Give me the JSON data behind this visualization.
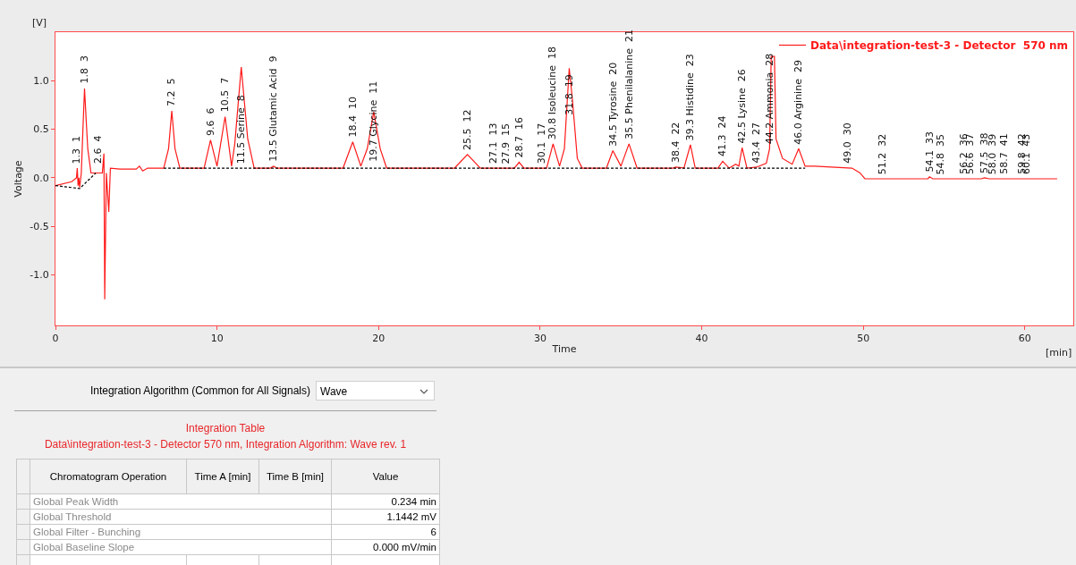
{
  "chart_data": [
    {
      "type": "line",
      "xlabel": "Time",
      "ylabel": "Voltage",
      "xlim": [
        0,
        63
      ],
      "xticks": [
        0,
        10,
        20,
        30,
        40,
        50,
        60
      ],
      "ylim": [
        -1.52,
        1.5
      ],
      "yticks": [
        {
          "value": -1,
          "label": "-1.0"
        },
        {
          "value": -0.5,
          "label": "-0.5"
        },
        {
          "value": 0,
          "label": "0.0"
        },
        {
          "value": 0.5,
          "label": "0.5"
        },
        {
          "value": 1,
          "label": "1.0"
        }
      ],
      "grid": false,
      "marker": "none",
      "legend": "top right",
      "series": [
        {
          "name": "Data\\integration-test-3 - Detector  570 nm",
          "color": "#ff1a1a",
          "line_style": "solid",
          "x": [
            0,
            1.0,
            1.3,
            1.35,
            1.4,
            1.45,
            1.5,
            1.6,
            1.7,
            1.8,
            1.9,
            2.0,
            2.2,
            2.5,
            2.9,
            3.0,
            3.05,
            3.1,
            3.15,
            3.3,
            3.4,
            4.0,
            5.0,
            5.2,
            5.4,
            5.7,
            6.7,
            7.0,
            7.2,
            7.4,
            7.7,
            9.2,
            9.6,
            10.0,
            10.5,
            10.9,
            11.1,
            11.5,
            11.9,
            12.3,
            13.3,
            13.5,
            13.7,
            17.8,
            18.4,
            18.9,
            19.3,
            19.7,
            20.1,
            20.5,
            24.7,
            25.5,
            26.3,
            28.4,
            28.7,
            29.0,
            30.4,
            30.8,
            31.2,
            31.5,
            31.8,
            32.0,
            32.3,
            32.6,
            34.1,
            34.5,
            35.0,
            35.5,
            36.0,
            38.2,
            38.4,
            38.9,
            39.3,
            39.6,
            41.0,
            41.3,
            41.7,
            42.1,
            42.3,
            42.5,
            42.8,
            43.4,
            44.0,
            44.2,
            44.3,
            44.5,
            44.6,
            45.0,
            45.6,
            46.0,
            46.4,
            47.0,
            49.3,
            49.8,
            50.1,
            54.0,
            54.1,
            54.3,
            57.3,
            57.5,
            57.8,
            62
          ],
          "values": [
            -0.08,
            -0.04,
            0.0,
            0.1,
            -0.08,
            0.0,
            -0.1,
            0.05,
            0.5,
            0.92,
            0.6,
            0.3,
            0.05,
            0.05,
            0.05,
            0.25,
            -1.25,
            -0.6,
            0.05,
            -0.35,
            0.1,
            0.09,
            0.09,
            0.12,
            0.07,
            0.1,
            0.1,
            0.3,
            0.69,
            0.3,
            0.1,
            0.1,
            0.39,
            0.12,
            0.63,
            0.12,
            0.35,
            1.14,
            0.4,
            0.1,
            0.1,
            0.12,
            0.1,
            0.1,
            0.37,
            0.12,
            0.3,
            0.68,
            0.3,
            0.1,
            0.1,
            0.24,
            0.1,
            0.1,
            0.16,
            0.1,
            0.1,
            0.35,
            0.12,
            0.3,
            1.13,
            0.8,
            0.2,
            0.1,
            0.1,
            0.28,
            0.12,
            0.35,
            0.1,
            0.1,
            0.11,
            0.1,
            0.34,
            0.1,
            0.1,
            0.17,
            0.1,
            0.14,
            0.12,
            0.31,
            0.1,
            0.11,
            0.15,
            0.3,
            1.25,
            1.25,
            0.4,
            0.2,
            0.14,
            0.3,
            0.12,
            0.12,
            0.1,
            0.05,
            -0.01,
            -0.01,
            0.01,
            -0.01,
            -0.01,
            0.0,
            -0.01,
            -0.01
          ]
        },
        {
          "color": "#000000",
          "line_style": "dashed",
          "x": [
            0,
            1.5,
            2.5,
            2.6,
            6.7,
            46.4
          ],
          "values": [
            -0.08,
            -0.11,
            0.05,
            null,
            0.1,
            0.1
          ]
        }
      ],
      "annotations": [
        "[V]",
        "[min]",
        {
          "text": "1.3  1",
          "x": 1.3,
          "y": 0.1
        },
        {
          "text": "1.8  3",
          "x": 1.8,
          "y": 0.92
        },
        {
          "text": "2.6  4",
          "x": 2.6,
          "y": 0.1
        },
        {
          "text": "7.2  5",
          "x": 7.2,
          "y": 0.69
        },
        {
          "text": "9.6  6",
          "x": 9.6,
          "y": 0.39
        },
        {
          "text": "10.5  7",
          "x": 10.5,
          "y": 0.63
        },
        {
          "text": "11.5 Serine  8",
          "x": 11.5,
          "y": 0.1
        },
        {
          "text": "13.5 Glutamic Acid  9",
          "x": 13.5,
          "y": 0.12
        },
        {
          "text": "18.4  10",
          "x": 18.4,
          "y": 0.37
        },
        {
          "text": "19.7 Glycine  11",
          "x": 19.7,
          "y": 0.12
        },
        {
          "text": "25.5  12",
          "x": 25.5,
          "y": 0.24
        },
        {
          "text": "27.1  13",
          "x": 27.1,
          "y": 0.1
        },
        {
          "text": "27.9  15",
          "x": 27.9,
          "y": 0.1
        },
        {
          "text": "28.7  16",
          "x": 28.7,
          "y": 0.16
        },
        {
          "text": "30.1  17",
          "x": 30.1,
          "y": 0.1
        },
        {
          "text": "30.8 Isoleucine  18",
          "x": 30.8,
          "y": 0.35
        },
        {
          "text": "31.8  19",
          "x": 31.8,
          "y": 0.6
        },
        {
          "text": "34.5 Tyrosine  20",
          "x": 34.5,
          "y": 0.28
        },
        {
          "text": "35.5 Phenilalanine  21",
          "x": 35.5,
          "y": 0.35
        },
        {
          "text": "38.4  22",
          "x": 38.4,
          "y": 0.11
        },
        {
          "text": "39.3 Histidine  23",
          "x": 39.3,
          "y": 0.34
        },
        {
          "text": "41.3  24",
          "x": 41.3,
          "y": 0.17
        },
        {
          "text": "42.5 Lysine  26",
          "x": 42.5,
          "y": 0.31
        },
        {
          "text": "43.4  27",
          "x": 43.4,
          "y": 0.11
        },
        {
          "text": "44.2 Ammonia  28",
          "x": 44.2,
          "y": 0.3
        },
        {
          "text": "46.0 Arginine  29",
          "x": 46.0,
          "y": 0.3
        },
        {
          "text": "49.0  30",
          "x": 49.0,
          "y": 0.1
        },
        {
          "text": "51.2  32",
          "x": 51.2,
          "y": -0.01
        },
        {
          "text": "54.1  33",
          "x": 54.1,
          "y": 0.01
        },
        {
          "text": "54.8  35",
          "x": 54.8,
          "y": -0.01
        },
        {
          "text": "56.2  36",
          "x": 56.2,
          "y": -0.01
        },
        {
          "text": "56.6  37",
          "x": 56.6,
          "y": -0.01
        },
        {
          "text": "57.5  38",
          "x": 57.5,
          "y": 0.0
        },
        {
          "text": "58.0  39",
          "x": 58.0,
          "y": -0.01
        },
        {
          "text": "58.7  41",
          "x": 58.7,
          "y": -0.01
        },
        {
          "text": "59.8  42",
          "x": 59.8,
          "y": -0.01
        },
        {
          "text": "60.1  43",
          "x": 60.1,
          "y": -0.01
        }
      ]
    },
    {
      "type": "other",
      "title": "Integration Table",
      "subtitle": "Data\\integration-test-3 - Detector  570 nm, Integration Algorithm: Wave rev. 1",
      "annotations": [
        "Integration Algorithm (Common for All Signals)",
        "Wave",
        "Chromatogram Operation",
        "Time A [min]",
        "Time B [min]",
        "Value",
        "Global Peak Width",
        "0.234 min",
        "Global Threshold",
        "1.1442 mV",
        "Global Filter - Bunching",
        "6",
        "Global Baseline Slope",
        "0.000 mV/min"
      ]
    }
  ]
}
